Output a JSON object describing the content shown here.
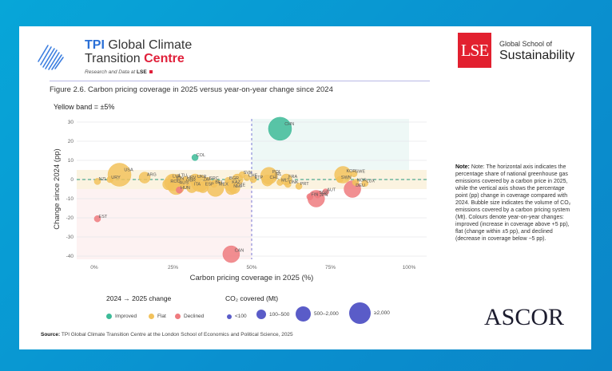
{
  "header": {
    "tpi_line1_brand": "TPI",
    "tpi_line1_rest": " Global Climate",
    "tpi_line2_rest": "Transition ",
    "tpi_line2_accent": "Centre",
    "tpi_sub": "Research and Data at ",
    "tpi_sub_bold": "LSE",
    "lse_mark": "LSE",
    "lse_line1": "Global School of",
    "lse_line2": "Sustainability"
  },
  "figure": {
    "title": "Figure 2.6. Carbon pricing coverage in 2025 versus year-on-year change since 2024",
    "band_label": "Yellow band = ±5%"
  },
  "colors": {
    "improved": "#3dbb98",
    "flat": "#f2c25c",
    "declined": "#ef7b7f",
    "size_legend": "#5a5cc8",
    "zero_line": "#2a9a7a",
    "divider_line": "#6a6ad0"
  },
  "chart_data": {
    "type": "scatter",
    "subtype": "bubble",
    "title": "Carbon pricing coverage in 2025 versus year-on-year change since 2024",
    "xlabel": "Carbon pricing coverage in 2025 (%)",
    "ylabel": "Change since 2024 (pp)",
    "xlim": [
      0,
      100
    ],
    "ylim": [
      -40,
      30
    ],
    "xticks": [
      "0%",
      "25%",
      "50%",
      "75%",
      "100%"
    ],
    "xtick_values": [
      0,
      25,
      50,
      75,
      100
    ],
    "yticks": [
      30,
      20,
      10,
      0,
      -10,
      -20,
      -30,
      -40
    ],
    "grid": true,
    "reference_lines": {
      "vertical_x": 50,
      "horizontal_y": 0
    },
    "bands": {
      "flat_band": [
        -5,
        5
      ],
      "improved_region": "x>=50, y>5",
      "declined_region": "x<50, y<-5"
    },
    "points": [
      {
        "label": "CHN",
        "x": 59,
        "y": 26.5,
        "status": "Improved",
        "size": "≥2,000"
      },
      {
        "label": "COL",
        "x": 32,
        "y": 11.5,
        "status": "Improved",
        "size": "<100"
      },
      {
        "label": "USA",
        "x": 8,
        "y": 2.5,
        "status": "Flat",
        "size": "≥2,000"
      },
      {
        "label": "NZL",
        "x": 1,
        "y": -1,
        "status": "Flat",
        "size": "<100"
      },
      {
        "label": "URY",
        "x": 5,
        "y": 0,
        "status": "Flat",
        "size": "<100"
      },
      {
        "label": "ARG",
        "x": 16,
        "y": 1,
        "status": "Flat",
        "size": "100-500"
      },
      {
        "label": "LVA",
        "x": 24.5,
        "y": 0.5,
        "status": "Flat",
        "size": "<100"
      },
      {
        "label": "LTU",
        "x": 26.5,
        "y": 1,
        "status": "Flat",
        "size": "<100"
      },
      {
        "label": "IDN",
        "x": 25,
        "y": -1.5,
        "status": "Flat",
        "size": "500-2,000"
      },
      {
        "label": "ROU",
        "x": 23.5,
        "y": -2.5,
        "status": "Flat",
        "size": "100-500"
      },
      {
        "label": "AUS",
        "x": 26,
        "y": -3.5,
        "status": "Flat",
        "size": "500-2,000"
      },
      {
        "label": "HUN",
        "x": 27,
        "y": -5.5,
        "status": "Declined",
        "size": "<100"
      },
      {
        "label": "HRV",
        "x": 29,
        "y": 0,
        "status": "Flat",
        "size": "<100"
      },
      {
        "label": "GBR",
        "x": 28.5,
        "y": -2,
        "status": "Flat",
        "size": "100-500"
      },
      {
        "label": "UKR",
        "x": 32,
        "y": 0,
        "status": "Flat",
        "size": "100-500"
      },
      {
        "label": "ZAF",
        "x": 33.5,
        "y": -2,
        "status": "Flat",
        "size": "500-2,000"
      },
      {
        "label": "ITA",
        "x": 31,
        "y": -4,
        "status": "Flat",
        "size": "100-500"
      },
      {
        "label": "GRC",
        "x": 36,
        "y": -0.5,
        "status": "Flat",
        "size": "<100"
      },
      {
        "label": "ESP",
        "x": 34.5,
        "y": -4,
        "status": "Flat",
        "size": "100-500"
      },
      {
        "label": "BEL",
        "x": 38,
        "y": -2.5,
        "status": "Flat",
        "size": "<100"
      },
      {
        "label": "MEX",
        "x": 38.5,
        "y": -4.5,
        "status": "Flat",
        "size": "500-2,000"
      },
      {
        "label": "BGR",
        "x": 42.5,
        "y": -0.5,
        "status": "Flat",
        "size": "<100"
      },
      {
        "label": "KAZ",
        "x": 43,
        "y": -3,
        "status": "Flat",
        "size": "100-500"
      },
      {
        "label": "NLD",
        "x": 43.5,
        "y": -5,
        "status": "Flat",
        "size": "100-500"
      },
      {
        "label": "CZE",
        "x": 44.5,
        "y": -4.5,
        "status": "Flat",
        "size": "100-500"
      },
      {
        "label": "SVK",
        "x": 47,
        "y": 2.5,
        "status": "Flat",
        "size": "<100"
      },
      {
        "label": "SVK2",
        "x": 45.5,
        "y": 0,
        "status": "Flat",
        "size": "100-500"
      },
      {
        "label": "CHE",
        "x": 48.5,
        "y": 1,
        "status": "Flat",
        "size": "<100"
      },
      {
        "label": "ETP",
        "x": 50.5,
        "y": 0,
        "status": "Flat",
        "size": "<100"
      },
      {
        "label": "POL",
        "x": 55.5,
        "y": 2,
        "status": "Flat",
        "size": "500-2,000"
      },
      {
        "label": "IRL",
        "x": 57,
        "y": 1.5,
        "status": "Flat",
        "size": "<100"
      },
      {
        "label": "CHL",
        "x": 55,
        "y": -0.5,
        "status": "Flat",
        "size": "100-500"
      },
      {
        "label": "FRA",
        "x": 61,
        "y": 0,
        "status": "Flat",
        "size": "100-500"
      },
      {
        "label": "MLT",
        "x": 59,
        "y": -1.5,
        "status": "Flat",
        "size": "<100"
      },
      {
        "label": "DNK",
        "x": 61.5,
        "y": -2.5,
        "status": "Flat",
        "size": "<100"
      },
      {
        "label": "PRT",
        "x": 65,
        "y": -3.5,
        "status": "Flat",
        "size": "<100"
      },
      {
        "label": "FIN",
        "x": 68.5,
        "y": -9,
        "status": "Declined",
        "size": "<100"
      },
      {
        "label": "JPN",
        "x": 70.5,
        "y": -10,
        "status": "Declined",
        "size": "500-2,000"
      },
      {
        "label": "SGP",
        "x": 71,
        "y": -8,
        "status": "Declined",
        "size": "<100"
      },
      {
        "label": "AUT",
        "x": 73.5,
        "y": -6.5,
        "status": "Declined",
        "size": "<100"
      },
      {
        "label": "SWN",
        "x": 78,
        "y": 0,
        "status": "Flat",
        "size": "<100"
      },
      {
        "label": "KOR",
        "x": 79,
        "y": 2.5,
        "status": "Flat",
        "size": "500-2,000"
      },
      {
        "label": "SWE",
        "x": 82.5,
        "y": 3,
        "status": "Flat",
        "size": "<100"
      },
      {
        "label": "NOR",
        "x": 83,
        "y": -1.5,
        "status": "Flat",
        "size": "<100"
      },
      {
        "label": "DEU",
        "x": 82,
        "y": -5,
        "status": "Declined",
        "size": "500-2,000"
      },
      {
        "label": "LUX",
        "x": 86,
        "y": -2,
        "status": "Flat",
        "size": "<100"
      },
      {
        "label": "EST",
        "x": 1,
        "y": -20.5,
        "status": "Declined",
        "size": "<100"
      },
      {
        "label": "CAN",
        "x": 43.5,
        "y": -39,
        "status": "Declined",
        "size": "500-2,000"
      }
    ],
    "legend": {
      "color_title": "2024 → 2025 change",
      "color_entries": [
        "Improved",
        "Flat",
        "Declined"
      ],
      "size_title": "CO₂ covered (Mt)",
      "size_entries": [
        "<100",
        "100–500",
        "500–2,000",
        "≥2,000"
      ],
      "placement": "bottom"
    }
  },
  "note": {
    "bold": "Note:",
    "text": " Note: The horizontal axis indicates the percentage share of national greenhouse gas emissions covered by a carbon price in 2025, while the vertical axis shows the percentage point (pp) change in coverage compared with 2024. Bubble size indicates the volume of CO₂ emissions covered by a carbon pricing system (Mt). Colours denote year-on-year changes: improved (increase in coverage above +5 pp), flat (change within ±5 pp), and declined (decrease in coverage below −5 pp)."
  },
  "source": {
    "bold": "Source:",
    "text": " TPI Global Climate Transition Centre at the London School of Economics and Political Science, 2025"
  },
  "ascor": {
    "text": "ASCOR"
  }
}
